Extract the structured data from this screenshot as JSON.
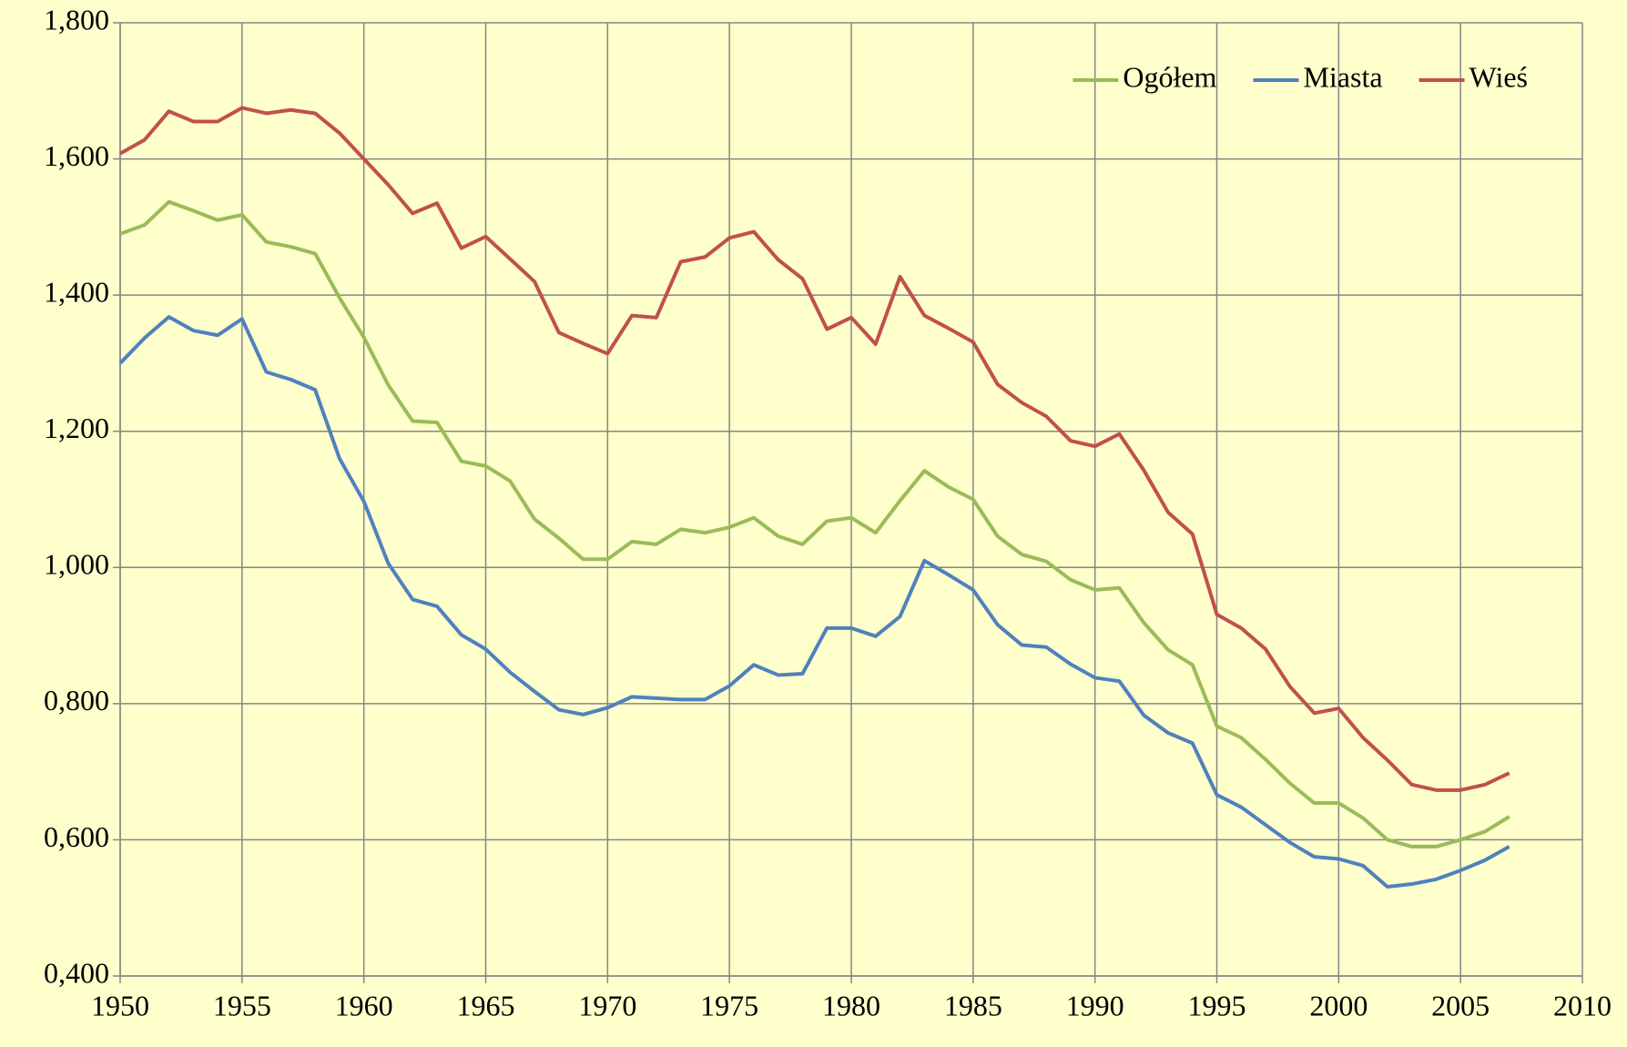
{
  "chart_data": {
    "type": "line",
    "x": [
      1950,
      1951,
      1952,
      1953,
      1954,
      1955,
      1956,
      1957,
      1958,
      1959,
      1960,
      1961,
      1962,
      1963,
      1964,
      1965,
      1966,
      1967,
      1968,
      1969,
      1970,
      1971,
      1972,
      1973,
      1974,
      1975,
      1976,
      1977,
      1978,
      1979,
      1980,
      1981,
      1982,
      1983,
      1984,
      1985,
      1986,
      1987,
      1988,
      1989,
      1990,
      1991,
      1992,
      1993,
      1994,
      1995,
      1996,
      1997,
      1998,
      1999,
      2000,
      2001,
      2002,
      2003,
      2004,
      2005,
      2006,
      2007
    ],
    "series": [
      {
        "name": "Ogółem",
        "color": "#9bbb59",
        "values": [
          1.49,
          1.503,
          1.537,
          1.524,
          1.51,
          1.518,
          1.478,
          1.471,
          1.461,
          1.396,
          1.338,
          1.268,
          1.215,
          1.213,
          1.156,
          1.149,
          1.127,
          1.071,
          1.043,
          1.012,
          1.012,
          1.038,
          1.034,
          1.056,
          1.051,
          1.059,
          1.073,
          1.046,
          1.034,
          1.068,
          1.073,
          1.051,
          1.098,
          1.142,
          1.118,
          1.1,
          1.046,
          1.019,
          1.009,
          0.982,
          0.967,
          0.97,
          0.919,
          0.879,
          0.857,
          0.767,
          0.75,
          0.718,
          0.683,
          0.654,
          0.654,
          0.632,
          0.6,
          0.59,
          0.59,
          0.6,
          0.612,
          0.634
        ]
      },
      {
        "name": "Miasta",
        "color": "#4f81bd",
        "values": [
          1.3,
          1.337,
          1.368,
          1.348,
          1.341,
          1.365,
          1.287,
          1.276,
          1.261,
          1.16,
          1.097,
          1.006,
          0.953,
          0.943,
          0.901,
          0.88,
          0.846,
          0.818,
          0.791,
          0.784,
          0.794,
          0.81,
          0.808,
          0.806,
          0.806,
          0.826,
          0.857,
          0.842,
          0.844,
          0.911,
          0.911,
          0.899,
          0.928,
          1.01,
          0.989,
          0.967,
          0.916,
          0.886,
          0.883,
          0.858,
          0.838,
          0.833,
          0.783,
          0.757,
          0.742,
          0.666,
          0.648,
          0.622,
          0.596,
          0.575,
          0.572,
          0.562,
          0.531,
          0.535,
          0.542,
          0.555,
          0.57,
          0.59
        ]
      },
      {
        "name": "Wieś",
        "color": "#c0504d",
        "values": [
          1.608,
          1.628,
          1.67,
          1.655,
          1.655,
          1.675,
          1.667,
          1.672,
          1.667,
          1.638,
          1.6,
          1.562,
          1.52,
          1.535,
          1.469,
          1.486,
          1.453,
          1.42,
          1.345,
          1.329,
          1.314,
          1.37,
          1.367,
          1.449,
          1.456,
          1.484,
          1.493,
          1.452,
          1.424,
          1.35,
          1.367,
          1.328,
          1.427,
          1.37,
          1.351,
          1.331,
          1.269,
          1.242,
          1.222,
          1.186,
          1.178,
          1.196,
          1.143,
          1.081,
          1.049,
          0.931,
          0.911,
          0.88,
          0.825,
          0.786,
          0.793,
          0.75,
          0.717,
          0.681,
          0.673,
          0.673,
          0.681,
          0.698
        ]
      }
    ],
    "xlim": [
      1950,
      2010
    ],
    "xticks": [
      1950,
      1955,
      1960,
      1965,
      1970,
      1975,
      1980,
      1985,
      1990,
      1995,
      2000,
      2005,
      2010
    ],
    "ylim": [
      0.4,
      1.8
    ],
    "yticks": [
      {
        "value": 0.4,
        "label": "0,400"
      },
      {
        "value": 0.6,
        "label": "0,600"
      },
      {
        "value": 0.8,
        "label": "0,800"
      },
      {
        "value": 1.0,
        "label": "1,000"
      },
      {
        "value": 1.2,
        "label": "1,200"
      },
      {
        "value": 1.4,
        "label": "1,400"
      },
      {
        "value": 1.6,
        "label": "1,600"
      },
      {
        "value": 1.8,
        "label": "1,800"
      }
    ],
    "grid": true,
    "legend": "upper right"
  }
}
